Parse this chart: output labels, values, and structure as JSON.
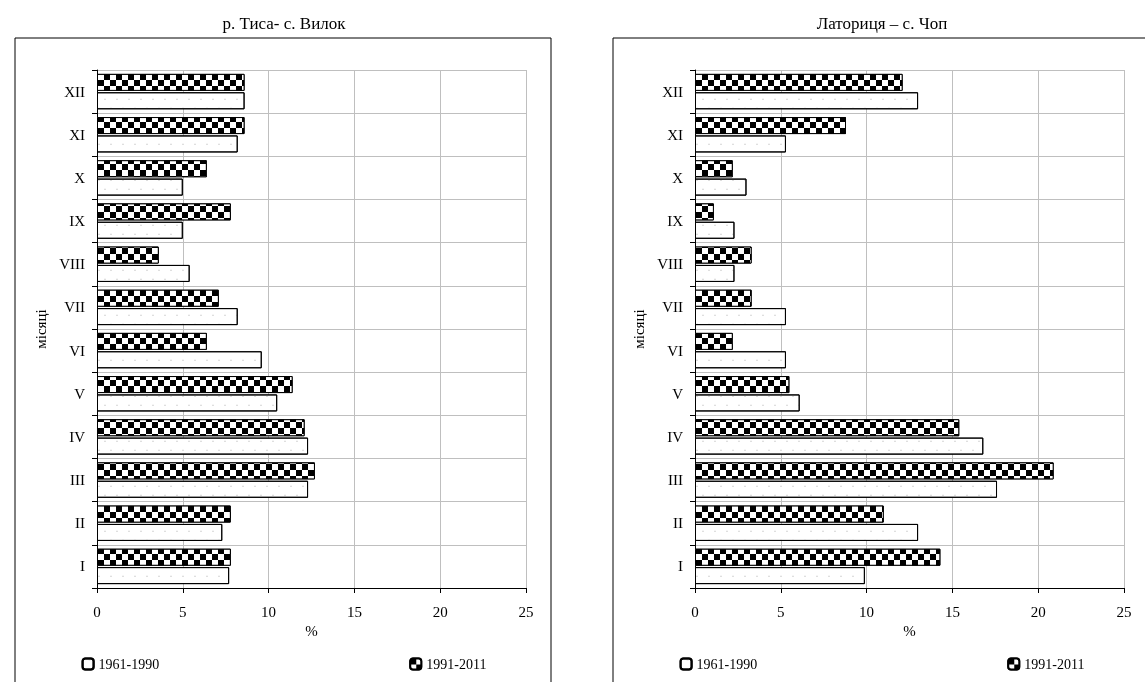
{
  "chart_data": [
    {
      "type": "bar",
      "orientation": "horizontal",
      "title": "р. Тиса- с. Вилок",
      "xlabel": "%",
      "ylabel": "місяці",
      "categories": [
        "XII",
        "XI",
        "X",
        "IX",
        "VIII",
        "VII",
        "VI",
        "V",
        "IV",
        "III",
        "II",
        "I"
      ],
      "series": [
        {
          "name": "1961-1990",
          "color": "#ffffff",
          "values": [
            8.6,
            8.2,
            5.0,
            5.0,
            5.4,
            8.2,
            9.6,
            10.5,
            12.3,
            12.3,
            7.3,
            7.7
          ]
        },
        {
          "name": "1991-2011",
          "color": "#000000",
          "values": [
            8.6,
            8.6,
            6.4,
            7.8,
            3.6,
            7.1,
            6.4,
            11.4,
            12.1,
            12.7,
            7.8,
            7.8
          ]
        }
      ],
      "xlim": [
        0,
        25
      ],
      "xticks": [
        0,
        5,
        10,
        15,
        20,
        25
      ],
      "grid": true,
      "legend": "bottom"
    },
    {
      "type": "bar",
      "orientation": "horizontal",
      "title": "Латориця – с. Чоп",
      "xlabel": "%",
      "ylabel": "місяці",
      "categories": [
        "XII",
        "XI",
        "X",
        "IX",
        "VIII",
        "VII",
        "VI",
        "V",
        "IV",
        "III",
        "II",
        "I"
      ],
      "series": [
        {
          "name": "1961-1990",
          "color": "#ffffff",
          "values": [
            13.0,
            5.3,
            3.0,
            2.3,
            2.3,
            5.3,
            5.3,
            6.1,
            16.8,
            17.6,
            13.0,
            9.9
          ]
        },
        {
          "name": "1991-2011",
          "color": "#000000",
          "values": [
            12.1,
            8.8,
            2.2,
            1.1,
            3.3,
            3.3,
            2.2,
            5.5,
            15.4,
            20.9,
            11.0,
            14.3
          ]
        }
      ],
      "xlim": [
        0,
        25
      ],
      "xticks": [
        0,
        5,
        10,
        15,
        20,
        25
      ],
      "grid": true,
      "legend": "bottom"
    }
  ]
}
